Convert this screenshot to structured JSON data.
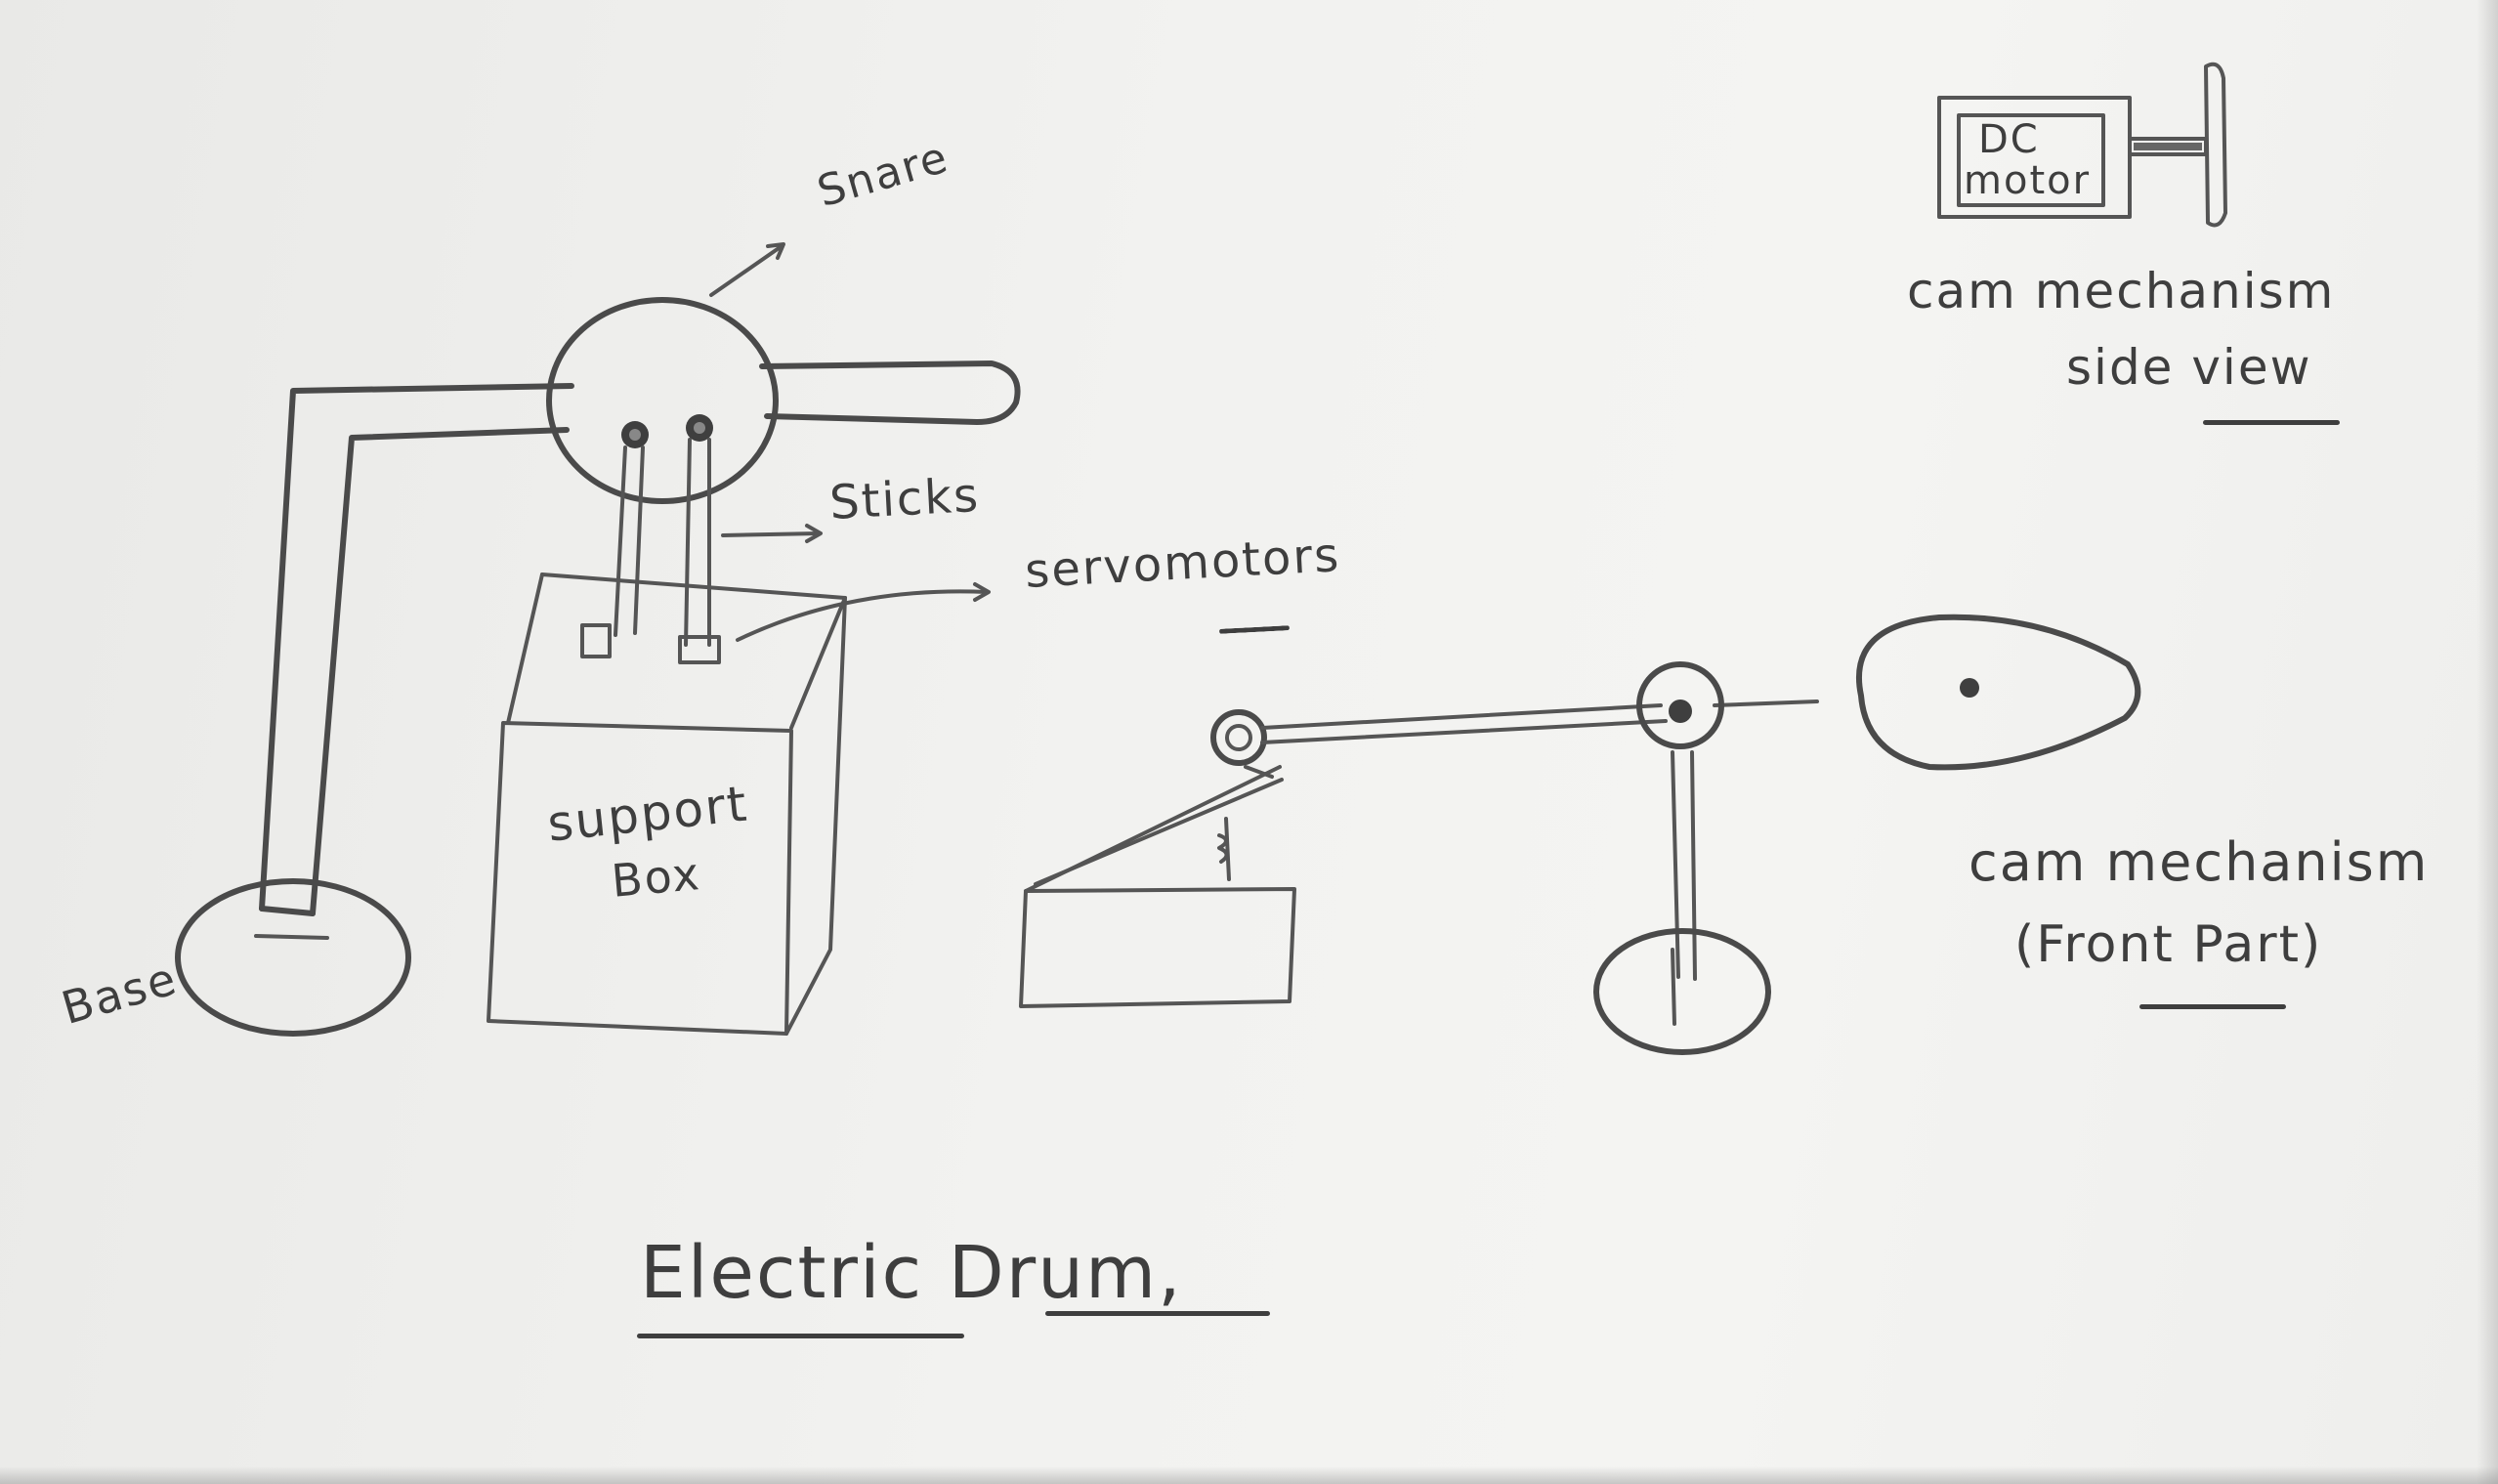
{
  "diagram": {
    "title": "Electric Drum",
    "title_suffix": ",",
    "labels": {
      "snare": "Snare",
      "sticks": "Sticks",
      "servomotors": "servomotors",
      "support_box_line1": "support",
      "support_box_line2": "Box",
      "base": "Base",
      "dc_motor_line1": "DC",
      "dc_motor_line2": "motor",
      "cam_side_line1": "cam mechanism",
      "cam_side_line2": "side view",
      "cam_front_line1": "cam mechanism",
      "cam_front_line2": "(Front Part)"
    },
    "colors": {
      "ink": "#4a4a4a",
      "paper": "#f2f2f0"
    }
  }
}
